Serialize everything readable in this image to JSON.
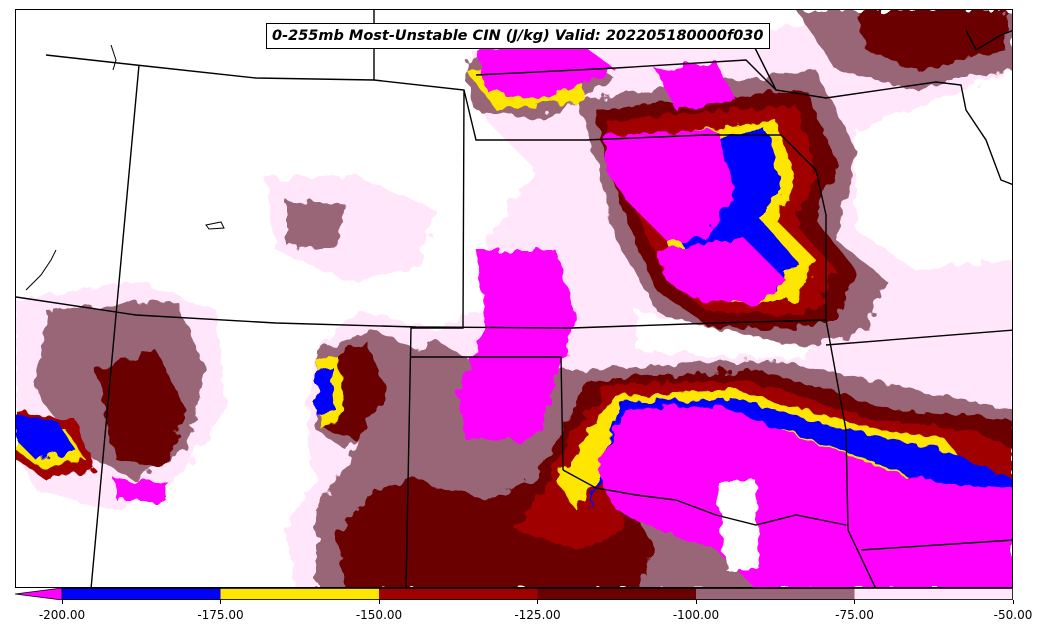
{
  "title": "0-255mb Most-Unstable CIN (J/kg) Valid: 202205180000f030",
  "colors": {
    "lt200": "#ff00ff",
    "b175_200": "#0000ff",
    "b150_175": "#ffe600",
    "b125_150": "#a00000",
    "b100_125": "#6b0000",
    "b75_100": "#996677",
    "b50_75": "#ffe6fa",
    "background": "#ffffff",
    "border": "#000000"
  },
  "colorbar": {
    "ticks": [
      "-200.00",
      "-175.00",
      "-150.00",
      "-125.00",
      "-100.00",
      "-75.00",
      "-50.00"
    ],
    "min": -200,
    "max": -50,
    "extend": "min",
    "bins": [
      {
        "from": -200,
        "to": -175,
        "color": "#0000ff"
      },
      {
        "from": -175,
        "to": -150,
        "color": "#ffe600"
      },
      {
        "from": -150,
        "to": -125,
        "color": "#a00000"
      },
      {
        "from": -125,
        "to": -100,
        "color": "#6b0000"
      },
      {
        "from": -100,
        "to": -75,
        "color": "#996677"
      },
      {
        "from": -75,
        "to": -50,
        "color": "#ffe6fa"
      }
    ]
  }
}
